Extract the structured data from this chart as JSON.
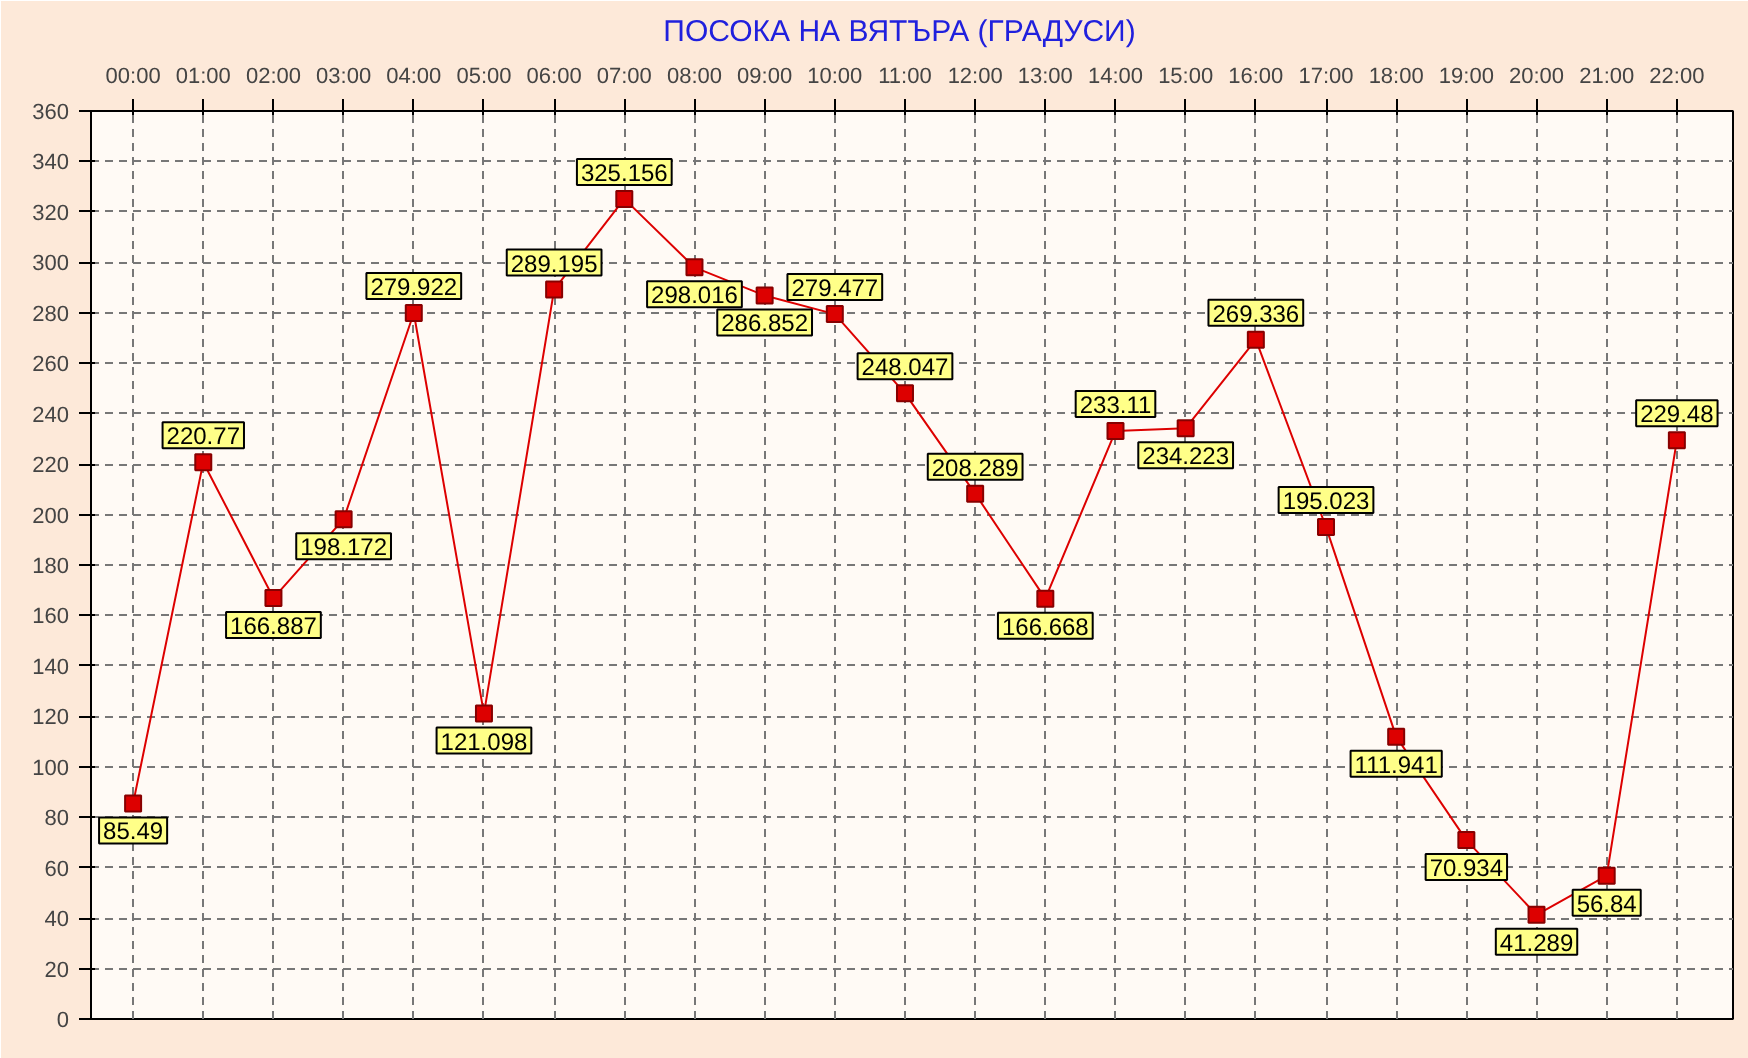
{
  "chart_data": {
    "type": "line",
    "title": "ПОСОКА НА ВЯТЪРА    (ГРАДУСИ)",
    "x": [
      0,
      1,
      2,
      3,
      4,
      5,
      6,
      7,
      8,
      9,
      10,
      11,
      12,
      13,
      14,
      15,
      16,
      17,
      18,
      19,
      20,
      21,
      22
    ],
    "series": [
      {
        "color": "#dd0000",
        "values": [
          85.49,
          220.77,
          166.887,
          198.172,
          279.922,
          121.098,
          289.195,
          325.156,
          298.016,
          286.852,
          279.477,
          248.047,
          208.289,
          166.668,
          233.11,
          234.223,
          269.336,
          195.023,
          111.941,
          70.934,
          41.289,
          56.84,
          229.48
        ]
      }
    ],
    "xlim": [
      -0.6,
      22.8
    ],
    "xticks": [
      {
        "value": 0,
        "label": "00:00"
      },
      {
        "value": 1,
        "label": "01:00"
      },
      {
        "value": 2,
        "label": "02:00"
      },
      {
        "value": 3,
        "label": "03:00"
      },
      {
        "value": 4,
        "label": "04:00"
      },
      {
        "value": 5,
        "label": "05:00"
      },
      {
        "value": 6,
        "label": "06:00"
      },
      {
        "value": 7,
        "label": "07:00"
      },
      {
        "value": 8,
        "label": "08:00"
      },
      {
        "value": 9,
        "label": "09:00"
      },
      {
        "value": 10,
        "label": "10:00"
      },
      {
        "value": 11,
        "label": "11:00"
      },
      {
        "value": 12,
        "label": "12:00"
      },
      {
        "value": 13,
        "label": "13:00"
      },
      {
        "value": 14,
        "label": "14:00"
      },
      {
        "value": 15,
        "label": "15:00"
      },
      {
        "value": 16,
        "label": "16:00"
      },
      {
        "value": 17,
        "label": "17:00"
      },
      {
        "value": 18,
        "label": "18:00"
      },
      {
        "value": 19,
        "label": "19:00"
      },
      {
        "value": 20,
        "label": "20:00"
      },
      {
        "value": 21,
        "label": "21:00"
      },
      {
        "value": 22,
        "label": "22:00"
      }
    ],
    "ylim": [
      0,
      360
    ],
    "yticks": [
      0,
      20,
      40,
      60,
      80,
      100,
      120,
      140,
      160,
      180,
      200,
      220,
      240,
      260,
      280,
      300,
      320,
      340,
      360
    ],
    "grid": true,
    "marker": "square",
    "line_style": "solid",
    "data_labels": true
  }
}
